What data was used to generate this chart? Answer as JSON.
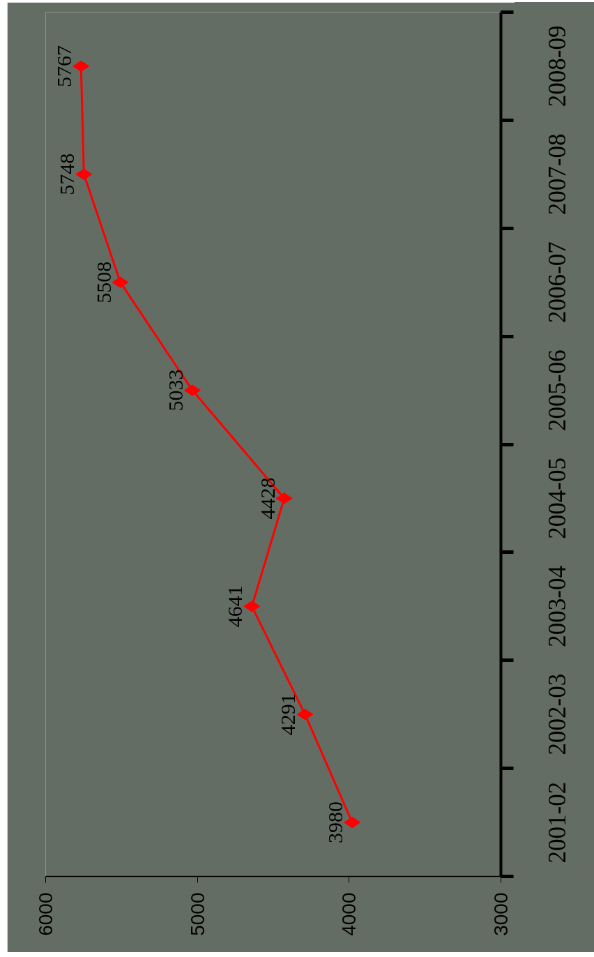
{
  "chart_data": {
    "type": "line",
    "orientation": "horizontal",
    "categories": [
      "2008-09",
      "2007-08",
      "2006-07",
      "2005-06",
      "2004-05",
      "2003-04",
      "2002-03",
      "2001-02"
    ],
    "series": [
      {
        "color": "#ff0000",
        "values": [
          5767,
          5748,
          5508,
          5033,
          4428,
          4641,
          4291,
          3980
        ]
      }
    ],
    "marker": "diamond",
    "line_style": "solid",
    "data_labels": true,
    "grid": false,
    "xlim": [
      6000,
      3000
    ],
    "xticks": [
      6000,
      5000,
      4000,
      3000
    ]
  }
}
